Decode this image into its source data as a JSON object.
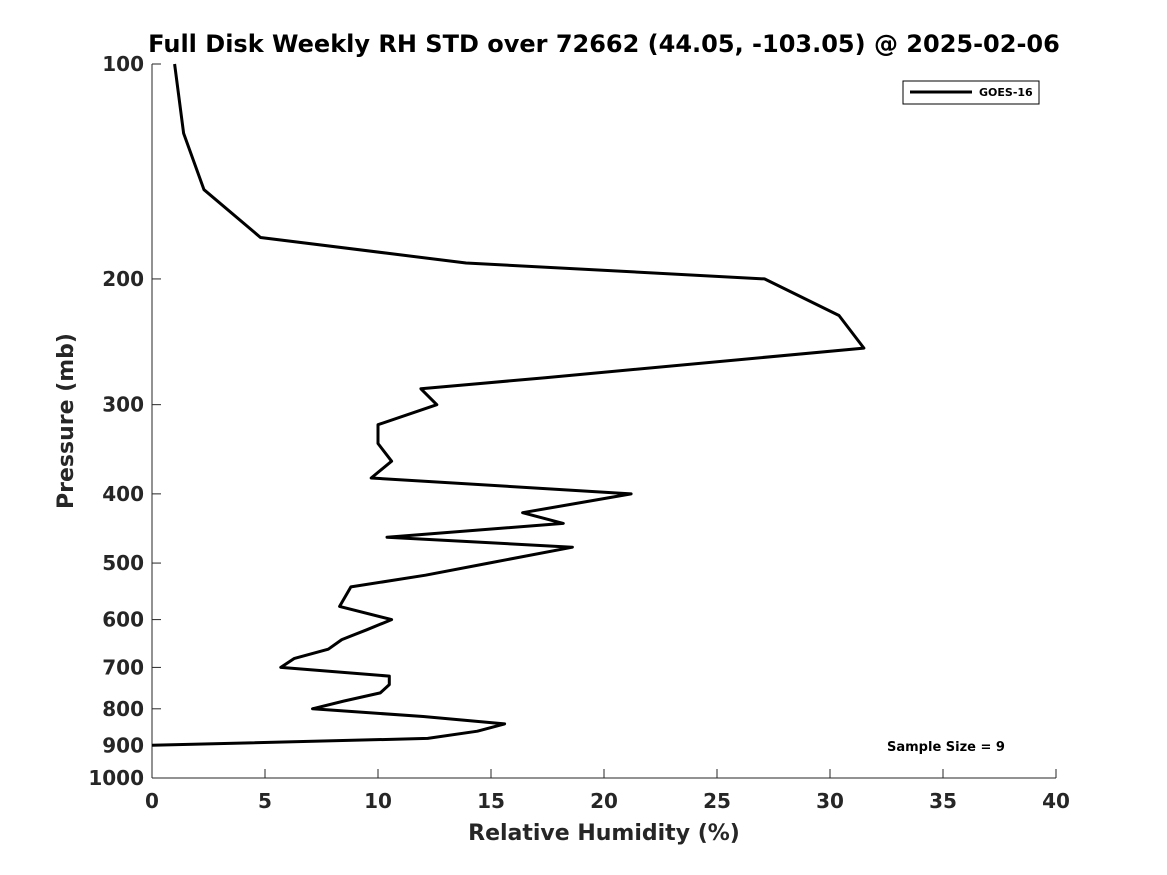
{
  "chart_data": {
    "type": "line",
    "title": "Full Disk Weekly RH STD over 72662 (44.05, -103.05) @ 2025-02-06",
    "xlabel": "Relative Humidity (%)",
    "ylabel": "Pressure (mb)",
    "xlim": [
      0,
      40
    ],
    "ylim": [
      100,
      1000
    ],
    "y_scale": "log",
    "y_reversed": true,
    "x_ticks": [
      "0",
      "5",
      "10",
      "15",
      "20",
      "25",
      "30",
      "35",
      "40"
    ],
    "y_ticks": [
      "100",
      "200",
      "300",
      "400",
      "500",
      "600",
      "700",
      "800",
      "900",
      "1000"
    ],
    "grid": false,
    "legend": {
      "position": "top-right",
      "entries": [
        "GOES-16"
      ]
    },
    "annotation": "Sample Size = 9",
    "series": [
      {
        "name": "GOES-16",
        "color": "#000000",
        "x": [
          1.0,
          1.4,
          2.3,
          4.8,
          13.9,
          27.1,
          30.4,
          31.5,
          17.4,
          11.9,
          12.6,
          10.0,
          10.0,
          10.6,
          9.7,
          21.2,
          16.4,
          18.2,
          10.4,
          18.6,
          14.9,
          12.1,
          8.8,
          8.3,
          10.6,
          9.5,
          8.4,
          7.8,
          6.3,
          5.7,
          10.5,
          10.5,
          10.1,
          8.5,
          7.1,
          12.0,
          15.6,
          14.4,
          12.2,
          0.0
        ],
        "y": [
          100,
          125,
          150,
          175,
          190,
          200,
          225,
          250,
          275,
          285,
          300,
          320,
          340,
          360,
          380,
          400,
          425,
          440,
          460,
          475,
          500,
          520,
          540,
          575,
          600,
          620,
          640,
          660,
          680,
          700,
          720,
          740,
          760,
          780,
          800,
          820,
          840,
          860,
          880,
          900
        ]
      }
    ]
  }
}
